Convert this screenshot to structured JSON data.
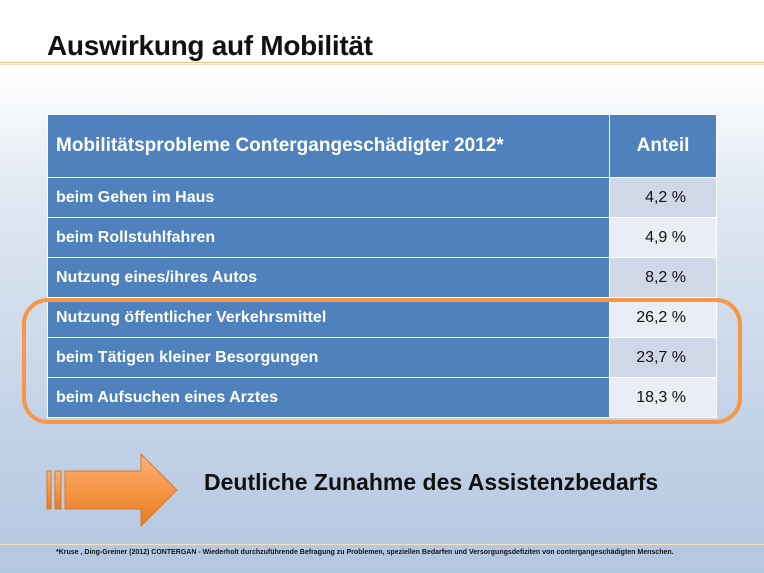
{
  "title": "Auswirkung auf Mobilität",
  "table": {
    "header": {
      "label": "Mobilitätsprobleme Contergangeschädigter 2012*",
      "value": "Anteil"
    },
    "rows": [
      {
        "label": "beim Gehen im Haus",
        "value": "4,2 %"
      },
      {
        "label": "beim Rollstuhlfahren",
        "value": "4,9 %"
      },
      {
        "label": "Nutzung eines/ihres Autos",
        "value": "8,2 %"
      },
      {
        "label": "Nutzung öffentlicher Verkehrsmittel",
        "value": "26,2 %"
      },
      {
        "label": "beim Tätigen kleiner Besorgungen",
        "value": "23,7 %"
      },
      {
        "label": "beim Aufsuchen eines Arztes",
        "value": "18,3 %"
      }
    ]
  },
  "conclusion": "Deutliche Zunahme des Assistenzbedarfs",
  "footnote": "*Kruse , Ding-Greiner (2012) CONTERGAN - Wiederholt durchzuführende Befragung zu Problemen, speziellen Bedarfen und Versorgungsdefiziten von contergangeschädigten Menschen.",
  "colors": {
    "header_blue": "#4f81bd",
    "highlight_orange": "#f79646",
    "arrow_orange": "#f79646"
  }
}
